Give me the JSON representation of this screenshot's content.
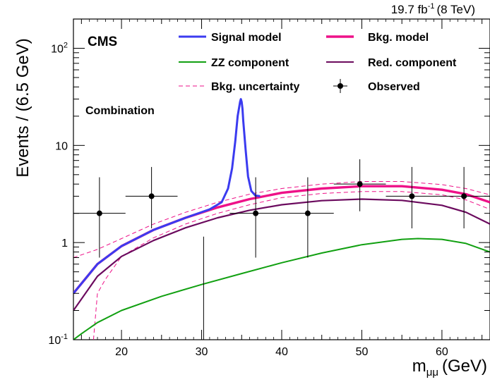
{
  "header": {
    "lumi": "19.7 fb",
    "lumi_sup": "-1",
    "energy": "(8 TeV)"
  },
  "labels": {
    "cms": "CMS",
    "channel": "Combination"
  },
  "legend": {
    "signal": "Signal model",
    "bkg": "Bkg. model",
    "zz": "ZZ component",
    "red": "Red. component",
    "unc": "Bkg. uncertainty",
    "obs": "Observed"
  },
  "colors": {
    "signal": "#3b3bf0",
    "bkg": "#ee1188",
    "zz": "#11a011",
    "red": "#6b0a5e",
    "unc": "#ee1188",
    "obs": "#000000"
  },
  "chart_data": {
    "type": "line",
    "ylabel": "Events / (6.5 GeV)",
    "xlabel": "m",
    "xlabel_sub": "μμ",
    "xlabel_unit": "(GeV)",
    "xlim": [
      14,
      66
    ],
    "ylim": [
      0.1,
      200
    ],
    "yscale": "log",
    "x_ticks": [
      20,
      30,
      40,
      50,
      60
    ],
    "y_ticks": [
      {
        "value": 0.1,
        "base": "10",
        "exp": "-1"
      },
      {
        "value": 1,
        "base": "1",
        "exp": ""
      },
      {
        "value": 10,
        "base": "10",
        "exp": ""
      },
      {
        "value": 100,
        "base": "10",
        "exp": "2"
      }
    ],
    "series": [
      {
        "name": "Signal model",
        "key": "signal",
        "x": [
          14,
          17,
          20,
          24,
          28,
          31,
          32.5,
          33.3,
          33.8,
          34.2,
          34.5,
          34.8,
          34.9,
          35.0,
          35.1,
          35.2,
          35.5,
          35.8,
          36.2,
          36.7,
          37.3
        ],
        "y": [
          0.3,
          0.6,
          0.92,
          1.35,
          1.8,
          2.2,
          2.6,
          3.6,
          5.8,
          11,
          20,
          28,
          30,
          28,
          24,
          18,
          9,
          4.8,
          3.4,
          3.05,
          3.0
        ]
      },
      {
        "name": "Bkg. model",
        "key": "bkg",
        "x": [
          14,
          17,
          20,
          24,
          28,
          32,
          36,
          40,
          45,
          50,
          55,
          60,
          63,
          66
        ],
        "y": [
          0.3,
          0.6,
          0.92,
          1.35,
          1.8,
          2.3,
          2.8,
          3.25,
          3.6,
          3.8,
          3.8,
          3.5,
          3.15,
          2.6
        ]
      },
      {
        "name": "ZZ component",
        "key": "zz",
        "x": [
          14,
          15,
          17,
          20,
          25,
          30,
          35,
          40,
          45,
          50,
          55,
          57,
          60,
          63,
          66
        ],
        "y": [
          0.1,
          0.115,
          0.15,
          0.2,
          0.28,
          0.37,
          0.48,
          0.62,
          0.78,
          0.95,
          1.08,
          1.1,
          1.08,
          0.98,
          0.8
        ]
      },
      {
        "name": "Red. component",
        "key": "red",
        "x": [
          14,
          17,
          20,
          24,
          28,
          32,
          36,
          40,
          45,
          50,
          55,
          60,
          63,
          66
        ],
        "y": [
          0.2,
          0.45,
          0.72,
          1.05,
          1.42,
          1.8,
          2.15,
          2.45,
          2.7,
          2.8,
          2.72,
          2.42,
          2.05,
          1.55
        ]
      },
      {
        "name": "Bkg. uncertainty",
        "key": "unc",
        "dashed": true,
        "x": [
          14,
          17,
          20,
          24,
          28,
          32,
          36,
          40,
          45,
          50,
          55,
          60,
          63,
          66
        ],
        "y": [
          0.7,
          0.85,
          1.1,
          1.55,
          2.05,
          2.6,
          3.15,
          3.6,
          4.0,
          4.25,
          4.25,
          3.95,
          3.6,
          3.1
        ]
      },
      {
        "name": "",
        "key": "unc",
        "dashed": true,
        "x": [
          16.5,
          17,
          18,
          20,
          24,
          28,
          32,
          36,
          40,
          45,
          50,
          55,
          60,
          63,
          66
        ],
        "y": [
          0.1,
          0.3,
          0.42,
          0.72,
          1.12,
          1.55,
          2.0,
          2.45,
          2.9,
          3.2,
          3.35,
          3.35,
          3.1,
          2.75,
          2.2
        ]
      }
    ],
    "observed": [
      {
        "x": 17.25,
        "y": 2,
        "xerr": 3.25,
        "ylo": 0.7,
        "yhi": 4.7
      },
      {
        "x": 23.75,
        "y": 3,
        "xerr": 3.25,
        "ylo": 1.4,
        "yhi": 6.0
      },
      {
        "x": 30.25,
        "y": 0,
        "xerr": 3.25,
        "ylo": 0,
        "yhi": 1.15
      },
      {
        "x": 36.75,
        "y": 2,
        "xerr": 3.25,
        "ylo": 0.7,
        "yhi": 4.7
      },
      {
        "x": 43.25,
        "y": 2,
        "xerr": 3.25,
        "ylo": 0.7,
        "yhi": 4.7
      },
      {
        "x": 49.75,
        "y": 4,
        "xerr": 3.25,
        "ylo": 2.1,
        "yhi": 7.2
      },
      {
        "x": 56.25,
        "y": 3,
        "xerr": 3.25,
        "ylo": 1.4,
        "yhi": 6.0
      },
      {
        "x": 62.75,
        "y": 3,
        "xerr": 3.25,
        "ylo": 1.4,
        "yhi": 6.0
      }
    ]
  }
}
